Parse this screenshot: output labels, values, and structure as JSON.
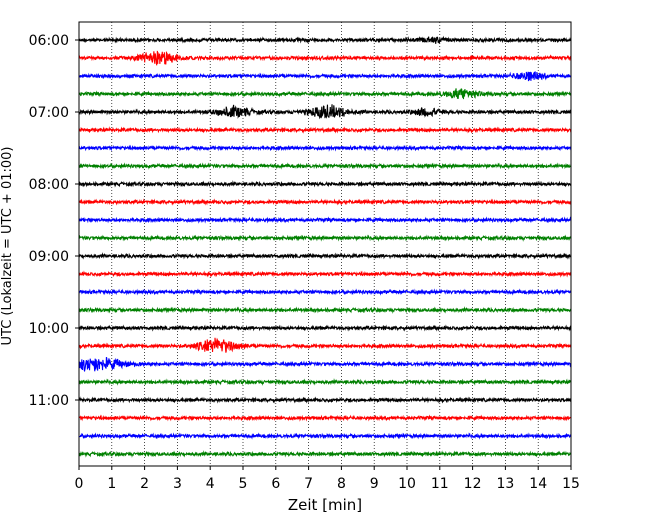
{
  "chart_data": {
    "type": "line",
    "subtype": "helicorder",
    "xlabel": "Zeit  [min]",
    "ylabel": "UTC (Lokalzeit = UTC + 01:00)",
    "xlim": [
      0,
      15
    ],
    "x_ticks": [
      "0",
      "1",
      "2",
      "3",
      "4",
      "5",
      "6",
      "7",
      "8",
      "9",
      "10",
      "11",
      "12",
      "13",
      "14",
      "15"
    ],
    "y_ticks": [
      "06:00",
      "07:00",
      "08:00",
      "09:00",
      "10:00",
      "11:00"
    ],
    "grid": "vertical-dotted",
    "trace_minutes": 15,
    "colors": [
      "#000000",
      "#ff0000",
      "#0000ff",
      "#008000"
    ],
    "traces": [
      {
        "start": "06:00",
        "color": "#000000",
        "amplitude": 0.18,
        "events": [
          {
            "t": 10.8,
            "amp": 0.25,
            "dur": 0.8
          }
        ]
      },
      {
        "start": "06:15",
        "color": "#ff0000",
        "amplitude": 0.18,
        "events": [
          {
            "t": 2.4,
            "amp": 0.7,
            "dur": 1.1
          }
        ]
      },
      {
        "start": "06:30",
        "color": "#0000ff",
        "amplitude": 0.18,
        "events": [
          {
            "t": 13.7,
            "amp": 0.45,
            "dur": 0.8
          }
        ]
      },
      {
        "start": "06:45",
        "color": "#008000",
        "amplitude": 0.18,
        "events": [
          {
            "t": 11.7,
            "amp": 0.5,
            "dur": 1.0
          }
        ]
      },
      {
        "start": "07:00",
        "color": "#000000",
        "amplitude": 0.18,
        "events": [
          {
            "t": 4.7,
            "amp": 0.55,
            "dur": 1.0
          },
          {
            "t": 7.6,
            "amp": 0.65,
            "dur": 1.2
          },
          {
            "t": 10.6,
            "amp": 0.4,
            "dur": 0.8
          }
        ]
      },
      {
        "start": "07:15",
        "color": "#ff0000",
        "amplitude": 0.18,
        "events": []
      },
      {
        "start": "07:30",
        "color": "#0000ff",
        "amplitude": 0.18,
        "events": []
      },
      {
        "start": "07:45",
        "color": "#008000",
        "amplitude": 0.18,
        "events": []
      },
      {
        "start": "08:00",
        "color": "#000000",
        "amplitude": 0.18,
        "events": []
      },
      {
        "start": "08:15",
        "color": "#ff0000",
        "amplitude": 0.18,
        "events": []
      },
      {
        "start": "08:30",
        "color": "#0000ff",
        "amplitude": 0.18,
        "events": []
      },
      {
        "start": "08:45",
        "color": "#008000",
        "amplitude": 0.18,
        "events": []
      },
      {
        "start": "09:00",
        "color": "#000000",
        "amplitude": 0.18,
        "events": []
      },
      {
        "start": "09:15",
        "color": "#ff0000",
        "amplitude": 0.18,
        "events": []
      },
      {
        "start": "09:30",
        "color": "#0000ff",
        "amplitude": 0.18,
        "events": []
      },
      {
        "start": "09:45",
        "color": "#008000",
        "amplitude": 0.18,
        "events": []
      },
      {
        "start": "10:00",
        "color": "#000000",
        "amplitude": 0.18,
        "events": []
      },
      {
        "start": "10:15",
        "color": "#ff0000",
        "amplitude": 0.18,
        "events": [
          {
            "t": 4.2,
            "amp": 0.8,
            "dur": 1.1
          }
        ]
      },
      {
        "start": "10:30",
        "color": "#0000ff",
        "amplitude": 0.18,
        "events": [
          {
            "t": 0.5,
            "amp": 0.7,
            "dur": 1.6
          }
        ]
      },
      {
        "start": "10:45",
        "color": "#008000",
        "amplitude": 0.18,
        "events": []
      },
      {
        "start": "11:00",
        "color": "#000000",
        "amplitude": 0.18,
        "events": []
      },
      {
        "start": "11:15",
        "color": "#ff0000",
        "amplitude": 0.18,
        "events": []
      },
      {
        "start": "11:30",
        "color": "#0000ff",
        "amplitude": 0.18,
        "events": []
      },
      {
        "start": "11:45",
        "color": "#008000",
        "amplitude": 0.18,
        "events": []
      }
    ]
  }
}
